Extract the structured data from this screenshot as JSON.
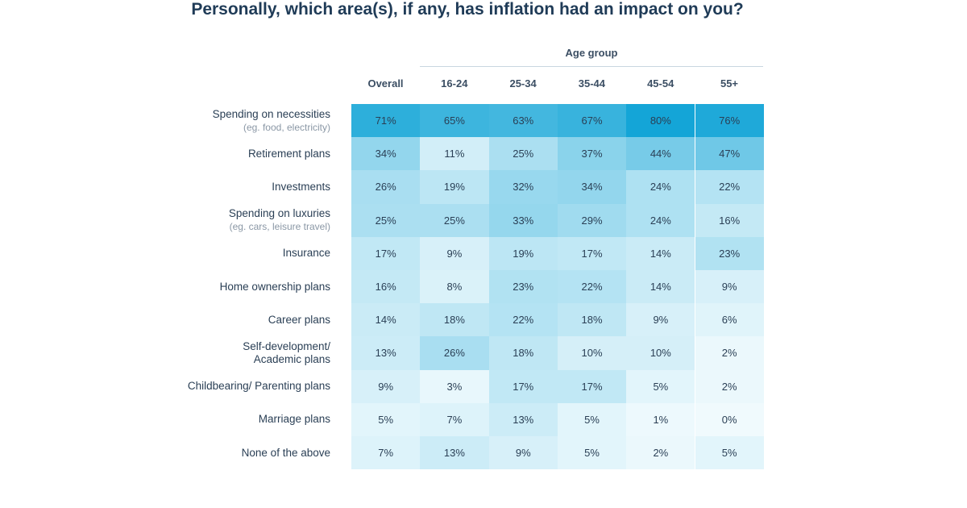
{
  "title": "Personally, which area(s), if any, has inflation had an impact on you?",
  "table": {
    "group_header": "Age group",
    "columns": [
      "Overall",
      "16-24",
      "25-34",
      "35-44",
      "45-54",
      "55+"
    ],
    "rows": [
      {
        "label": "Spending on necessities",
        "note": "(eg. food, electricity)",
        "cells": [
          "71%",
          "65%",
          "63%",
          "67%",
          "80%",
          "76%"
        ]
      },
      {
        "label": "Retirement plans",
        "cells": [
          "34%",
          "11%",
          "25%",
          "37%",
          "44%",
          "47%"
        ]
      },
      {
        "label": "Investments",
        "cells": [
          "26%",
          "19%",
          "32%",
          "34%",
          "24%",
          "22%"
        ]
      },
      {
        "label": "Spending on luxuries",
        "note": "(eg. cars, leisure travel)",
        "cells": [
          "25%",
          "25%",
          "33%",
          "29%",
          "24%",
          "16%"
        ]
      },
      {
        "label": "Insurance",
        "cells": [
          "17%",
          "9%",
          "19%",
          "17%",
          "14%",
          "23%"
        ]
      },
      {
        "label": "Home ownership plans",
        "cells": [
          "16%",
          "8%",
          "23%",
          "22%",
          "14%",
          "9%"
        ]
      },
      {
        "label": "Career plans",
        "cells": [
          "14%",
          "18%",
          "22%",
          "18%",
          "9%",
          "6%"
        ]
      },
      {
        "label": [
          "Self-development/",
          "Academic plans"
        ],
        "cells": [
          "13%",
          "26%",
          "18%",
          "10%",
          "10%",
          "2%"
        ]
      },
      {
        "label": "Childbearing/ Parenting plans",
        "cells": [
          "9%",
          "3%",
          "17%",
          "17%",
          "5%",
          "2%"
        ]
      },
      {
        "label": "Marriage plans",
        "cells": [
          "5%",
          "7%",
          "13%",
          "5%",
          "1%",
          "0%"
        ]
      },
      {
        "label": "None of the above",
        "cells": [
          "7%",
          "13%",
          "9%",
          "5%",
          "2%",
          "5%"
        ]
      }
    ]
  }
}
